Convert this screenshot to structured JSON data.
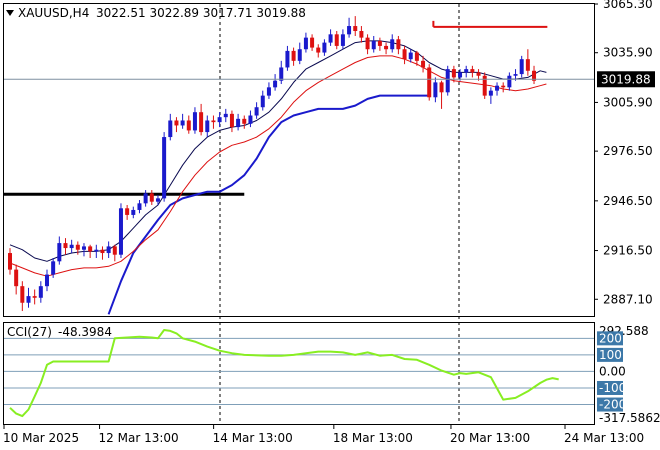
{
  "header": {
    "symbol": "XAUUSD,H4",
    "ohlc": "3022.51 3022.89 3017.71 3019.88"
  },
  "colors": {
    "bull": "#1a1acc",
    "bear": "#dd1111",
    "ma_fast": "#0a0a50",
    "ma_slow": "#dd1111",
    "support": "#1a1acc",
    "level": "#000000",
    "cci": "#88ee22",
    "price_tag_bg": "#000000",
    "cci_tag_bg": "#3c78a8"
  },
  "chart_data": [
    {
      "type": "candlestick",
      "title": "XAUUSD,H4",
      "ylim": [
        2877,
        3065.3
      ],
      "y_ticks": [
        "3065.30",
        "3035.90",
        "3005.90",
        "2976.50",
        "2946.50",
        "2916.50",
        "2887.10"
      ],
      "x_ticks": [
        "10 Mar 2025",
        "12 Mar 13:00",
        "14 Mar 13:00",
        "18 Mar 13:00",
        "20 Mar 13:00",
        "24 Mar 13:00"
      ],
      "last_price": "3019.88",
      "candles": [
        [
          2915,
          2905,
          2918,
          2902
        ],
        [
          2905,
          2895,
          2908,
          2890
        ],
        [
          2895,
          2885,
          2898,
          2880
        ],
        [
          2885,
          2889,
          2894,
          2882
        ],
        [
          2889,
          2888,
          2893,
          2884
        ],
        [
          2888,
          2895,
          2898,
          2885
        ],
        [
          2895,
          2902,
          2905,
          2892
        ],
        [
          2902,
          2910,
          2912,
          2900
        ],
        [
          2910,
          2921,
          2925,
          2908
        ],
        [
          2921,
          2918,
          2924,
          2914
        ],
        [
          2918,
          2920,
          2923,
          2915
        ],
        [
          2920,
          2917,
          2922,
          2914
        ],
        [
          2917,
          2919,
          2921,
          2913
        ],
        [
          2919,
          2916,
          2920,
          2912
        ],
        [
          2916,
          2917,
          2920,
          2912
        ],
        [
          2917,
          2915,
          2919,
          2911
        ],
        [
          2915,
          2919,
          2922,
          2912
        ],
        [
          2919,
          2914,
          2920,
          2910
        ],
        [
          2914,
          2942,
          2945,
          2912
        ],
        [
          2942,
          2938,
          2944,
          2935
        ],
        [
          2938,
          2941,
          2943,
          2936
        ],
        [
          2941,
          2945,
          2947,
          2939
        ],
        [
          2945,
          2951,
          2953,
          2943
        ],
        [
          2951,
          2946,
          2953,
          2944
        ],
        [
          2946,
          2948,
          2950,
          2944
        ],
        [
          2948,
          2985,
          2988,
          2946
        ],
        [
          2985,
          2995,
          2999,
          2983
        ],
        [
          2995,
          2992,
          2997,
          2988
        ],
        [
          2992,
          2995,
          2999,
          2990
        ],
        [
          2995,
          2989,
          2998,
          2987
        ],
        [
          2989,
          3000,
          3003,
          2987
        ],
        [
          3000,
          2988,
          3005,
          2986
        ],
        [
          2988,
          2995,
          2998,
          2985
        ],
        [
          2995,
          2994,
          2998,
          2990
        ],
        [
          2994,
          2997,
          3000,
          2991
        ],
        [
          2997,
          2999,
          3002,
          2994
        ],
        [
          2999,
          2991,
          3001,
          2988
        ],
        [
          2991,
          2996,
          2999,
          2989
        ],
        [
          2996,
          2993,
          2998,
          2990
        ],
        [
          2993,
          2998,
          3001,
          2991
        ],
        [
          2998,
          3003,
          3006,
          2996
        ],
        [
          3003,
          3010,
          3013,
          3001
        ],
        [
          3010,
          3015,
          3018,
          3008
        ],
        [
          3015,
          3019,
          3023,
          3013
        ],
        [
          3019,
          3027,
          3031,
          3017
        ],
        [
          3027,
          3037,
          3040,
          3025
        ],
        [
          3037,
          3031,
          3039,
          3028
        ],
        [
          3031,
          3038,
          3042,
          3029
        ],
        [
          3038,
          3045,
          3048,
          3036
        ],
        [
          3045,
          3039,
          3047,
          3037
        ],
        [
          3039,
          3036,
          3041,
          3033
        ],
        [
          3036,
          3042,
          3044,
          3034
        ],
        [
          3042,
          3047,
          3050,
          3040
        ],
        [
          3047,
          3040,
          3049,
          3038
        ],
        [
          3040,
          3047,
          3050,
          3038
        ],
        [
          3047,
          3052,
          3057,
          3045
        ],
        [
          3052,
          3049,
          3058,
          3046
        ],
        [
          3049,
          3045,
          3052,
          3042
        ],
        [
          3045,
          3038,
          3047,
          3035
        ],
        [
          3038,
          3043,
          3046,
          3036
        ],
        [
          3043,
          3040,
          3045,
          3037
        ],
        [
          3040,
          3038,
          3042,
          3035
        ],
        [
          3038,
          3044,
          3047,
          3036
        ],
        [
          3044,
          3038,
          3046,
          3035
        ],
        [
          3038,
          3032,
          3040,
          3029
        ],
        [
          3032,
          3036,
          3038,
          3030
        ],
        [
          3036,
          3031,
          3037,
          3028
        ],
        [
          3031,
          3027,
          3034,
          3024
        ],
        [
          3027,
          3009,
          3029,
          3007
        ],
        [
          3009,
          3018,
          3021,
          3006
        ],
        [
          3018,
          3012,
          3019,
          3002
        ],
        [
          3012,
          3026,
          3028,
          3010
        ],
        [
          3026,
          3021,
          3028,
          3018
        ],
        [
          3021,
          3024,
          3026,
          3019
        ],
        [
          3024,
          3026,
          3028,
          3021
        ],
        [
          3026,
          3024,
          3028,
          3021
        ],
        [
          3024,
          3022,
          3026,
          3019
        ],
        [
          3022,
          3010,
          3024,
          3008
        ],
        [
          3010,
          3013,
          3015,
          3005
        ],
        [
          3013,
          3016,
          3018,
          3010
        ],
        [
          3016,
          3015,
          3018,
          3012
        ],
        [
          3015,
          3022,
          3024,
          3013
        ],
        [
          3022,
          3023,
          3026,
          3019
        ],
        [
          3023,
          3032,
          3034,
          3021
        ],
        [
          3032,
          3025,
          3038,
          3022
        ],
        [
          3025,
          3019,
          3028,
          3017
        ]
      ],
      "ma_fast": [
        [
          0,
          2920
        ],
        [
          2,
          2917
        ],
        [
          4,
          2912
        ],
        [
          6,
          2910
        ],
        [
          8,
          2913
        ],
        [
          10,
          2915
        ],
        [
          12,
          2916
        ],
        [
          14,
          2916
        ],
        [
          16,
          2917
        ],
        [
          18,
          2922
        ],
        [
          20,
          2930
        ],
        [
          22,
          2938
        ],
        [
          24,
          2944
        ],
        [
          26,
          2956
        ],
        [
          28,
          2968
        ],
        [
          30,
          2978
        ],
        [
          32,
          2985
        ],
        [
          34,
          2989
        ],
        [
          36,
          2991
        ],
        [
          38,
          2992
        ],
        [
          40,
          2995
        ],
        [
          42,
          3000
        ],
        [
          44,
          3008
        ],
        [
          46,
          3018
        ],
        [
          48,
          3026
        ],
        [
          50,
          3030
        ],
        [
          52,
          3034
        ],
        [
          54,
          3038
        ],
        [
          56,
          3042
        ],
        [
          58,
          3043
        ],
        [
          60,
          3043
        ],
        [
          62,
          3042
        ],
        [
          64,
          3040
        ],
        [
          66,
          3036
        ],
        [
          68,
          3030
        ],
        [
          70,
          3026
        ],
        [
          72,
          3024
        ],
        [
          74,
          3024
        ],
        [
          76,
          3024
        ],
        [
          78,
          3022
        ],
        [
          80,
          3020
        ],
        [
          82,
          3020
        ],
        [
          84,
          3021
        ],
        [
          86,
          3025
        ],
        [
          87,
          3024
        ]
      ],
      "ma_slow": [
        [
          0,
          2909
        ],
        [
          2,
          2906
        ],
        [
          4,
          2903
        ],
        [
          6,
          2901
        ],
        [
          8,
          2903
        ],
        [
          10,
          2905
        ],
        [
          12,
          2906
        ],
        [
          14,
          2906
        ],
        [
          16,
          2907
        ],
        [
          18,
          2910
        ],
        [
          20,
          2916
        ],
        [
          22,
          2923
        ],
        [
          24,
          2929
        ],
        [
          26,
          2940
        ],
        [
          28,
          2952
        ],
        [
          30,
          2962
        ],
        [
          32,
          2970
        ],
        [
          34,
          2976
        ],
        [
          36,
          2980
        ],
        [
          38,
          2982
        ],
        [
          40,
          2985
        ],
        [
          42,
          2990
        ],
        [
          44,
          2997
        ],
        [
          46,
          3006
        ],
        [
          48,
          3013
        ],
        [
          50,
          3018
        ],
        [
          52,
          3022
        ],
        [
          54,
          3026
        ],
        [
          56,
          3030
        ],
        [
          58,
          3033
        ],
        [
          60,
          3034
        ],
        [
          62,
          3034
        ],
        [
          64,
          3032
        ],
        [
          66,
          3029
        ],
        [
          68,
          3025
        ],
        [
          70,
          3021
        ],
        [
          72,
          3019
        ],
        [
          74,
          3018
        ],
        [
          76,
          3017
        ],
        [
          78,
          3016
        ],
        [
          80,
          3014
        ],
        [
          82,
          3013
        ],
        [
          84,
          3014
        ],
        [
          86,
          3016
        ],
        [
          87,
          3017
        ]
      ],
      "support_line": [
        [
          16,
          2878
        ],
        [
          18,
          2898
        ],
        [
          20,
          2915
        ],
        [
          22,
          2925
        ],
        [
          24,
          2935
        ],
        [
          26,
          2944
        ],
        [
          28,
          2948
        ],
        [
          30,
          2950
        ],
        [
          32,
          2952
        ],
        [
          34,
          2952
        ],
        [
          36,
          2956
        ],
        [
          38,
          2962
        ],
        [
          40,
          2972
        ],
        [
          42,
          2985
        ],
        [
          44,
          2994
        ],
        [
          46,
          2998
        ],
        [
          48,
          3000
        ],
        [
          50,
          3002
        ],
        [
          52,
          3002
        ],
        [
          54,
          3002
        ],
        [
          56,
          3004
        ],
        [
          58,
          3008
        ],
        [
          60,
          3010
        ],
        [
          62,
          3010
        ],
        [
          64,
          3010
        ],
        [
          66,
          3010
        ],
        [
          68,
          3010
        ]
      ],
      "black_level": {
        "value": 2950.5,
        "from": 0,
        "to": 38
      },
      "red_level": {
        "value": 3051.5,
        "from": 69,
        "to": 87
      }
    },
    {
      "type": "line",
      "title": "CCI(27)",
      "value_label": "-48.3984",
      "ylim": [
        -317.5862,
        292.588
      ],
      "y_ticks": [
        "292.588",
        "200",
        "100",
        "0.00",
        "-100",
        "-200",
        "-317.5862"
      ],
      "levels": [
        200,
        100,
        0,
        -100,
        -200
      ],
      "series": [
        [
          0,
          -220
        ],
        [
          1,
          -255
        ],
        [
          2,
          -270
        ],
        [
          3,
          -230
        ],
        [
          4,
          -150
        ],
        [
          5,
          -70
        ],
        [
          6,
          40
        ],
        [
          7,
          60
        ],
        [
          8,
          60
        ],
        [
          10,
          60
        ],
        [
          12,
          60
        ],
        [
          15,
          60
        ],
        [
          16,
          60
        ],
        [
          17,
          200
        ],
        [
          19,
          205
        ],
        [
          21,
          210
        ],
        [
          23,
          205
        ],
        [
          24,
          200
        ],
        [
          25,
          250
        ],
        [
          26,
          245
        ],
        [
          27,
          230
        ],
        [
          28,
          200
        ],
        [
          30,
          180
        ],
        [
          32,
          150
        ],
        [
          34,
          125
        ],
        [
          36,
          110
        ],
        [
          38,
          100
        ],
        [
          42,
          95
        ],
        [
          44,
          95
        ],
        [
          46,
          100
        ],
        [
          48,
          110
        ],
        [
          50,
          120
        ],
        [
          52,
          120
        ],
        [
          54,
          115
        ],
        [
          56,
          100
        ],
        [
          58,
          115
        ],
        [
          60,
          95
        ],
        [
          62,
          100
        ],
        [
          64,
          75
        ],
        [
          66,
          70
        ],
        [
          68,
          40
        ],
        [
          70,
          5
        ],
        [
          72,
          -20
        ],
        [
          73,
          -10
        ],
        [
          74,
          -15
        ],
        [
          76,
          -5
        ],
        [
          78,
          -35
        ],
        [
          80,
          -170
        ],
        [
          82,
          -160
        ],
        [
          84,
          -120
        ],
        [
          86,
          -70
        ],
        [
          87,
          -50
        ],
        [
          88,
          -40
        ],
        [
          89,
          -48
        ]
      ]
    }
  ]
}
